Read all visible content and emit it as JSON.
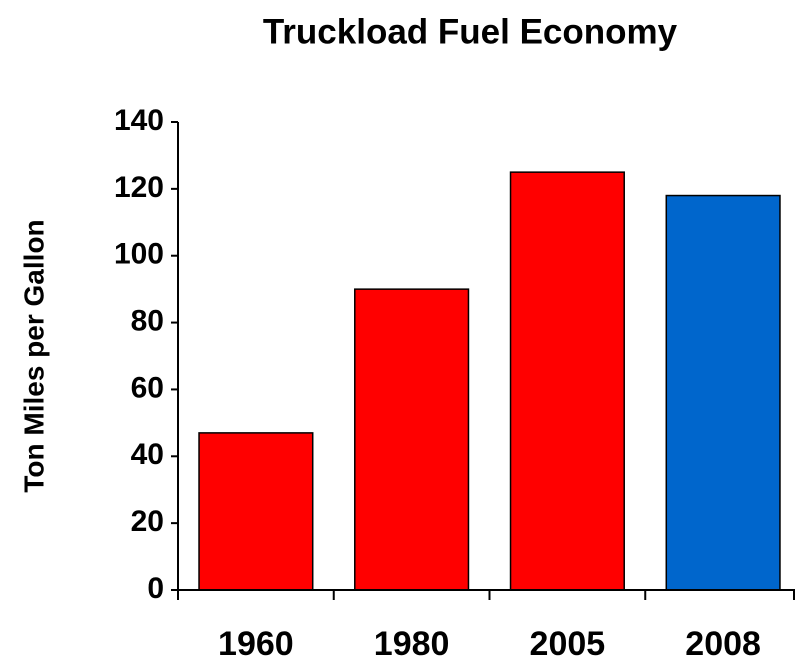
{
  "chart_data": {
    "type": "bar",
    "title": "Truckload Fuel Economy",
    "y_label": "Ton Miles per Gallon",
    "categories": [
      "1960",
      "1980",
      "2005",
      "2008"
    ],
    "values": [
      47,
      90,
      125,
      118
    ],
    "colors": [
      "#ff0000",
      "#ff0000",
      "#ff0000",
      "#0066cc"
    ],
    "ylim": [
      0,
      140
    ],
    "yticks": [
      0,
      20,
      40,
      60,
      80,
      100,
      120,
      140
    ],
    "grid": false
  }
}
